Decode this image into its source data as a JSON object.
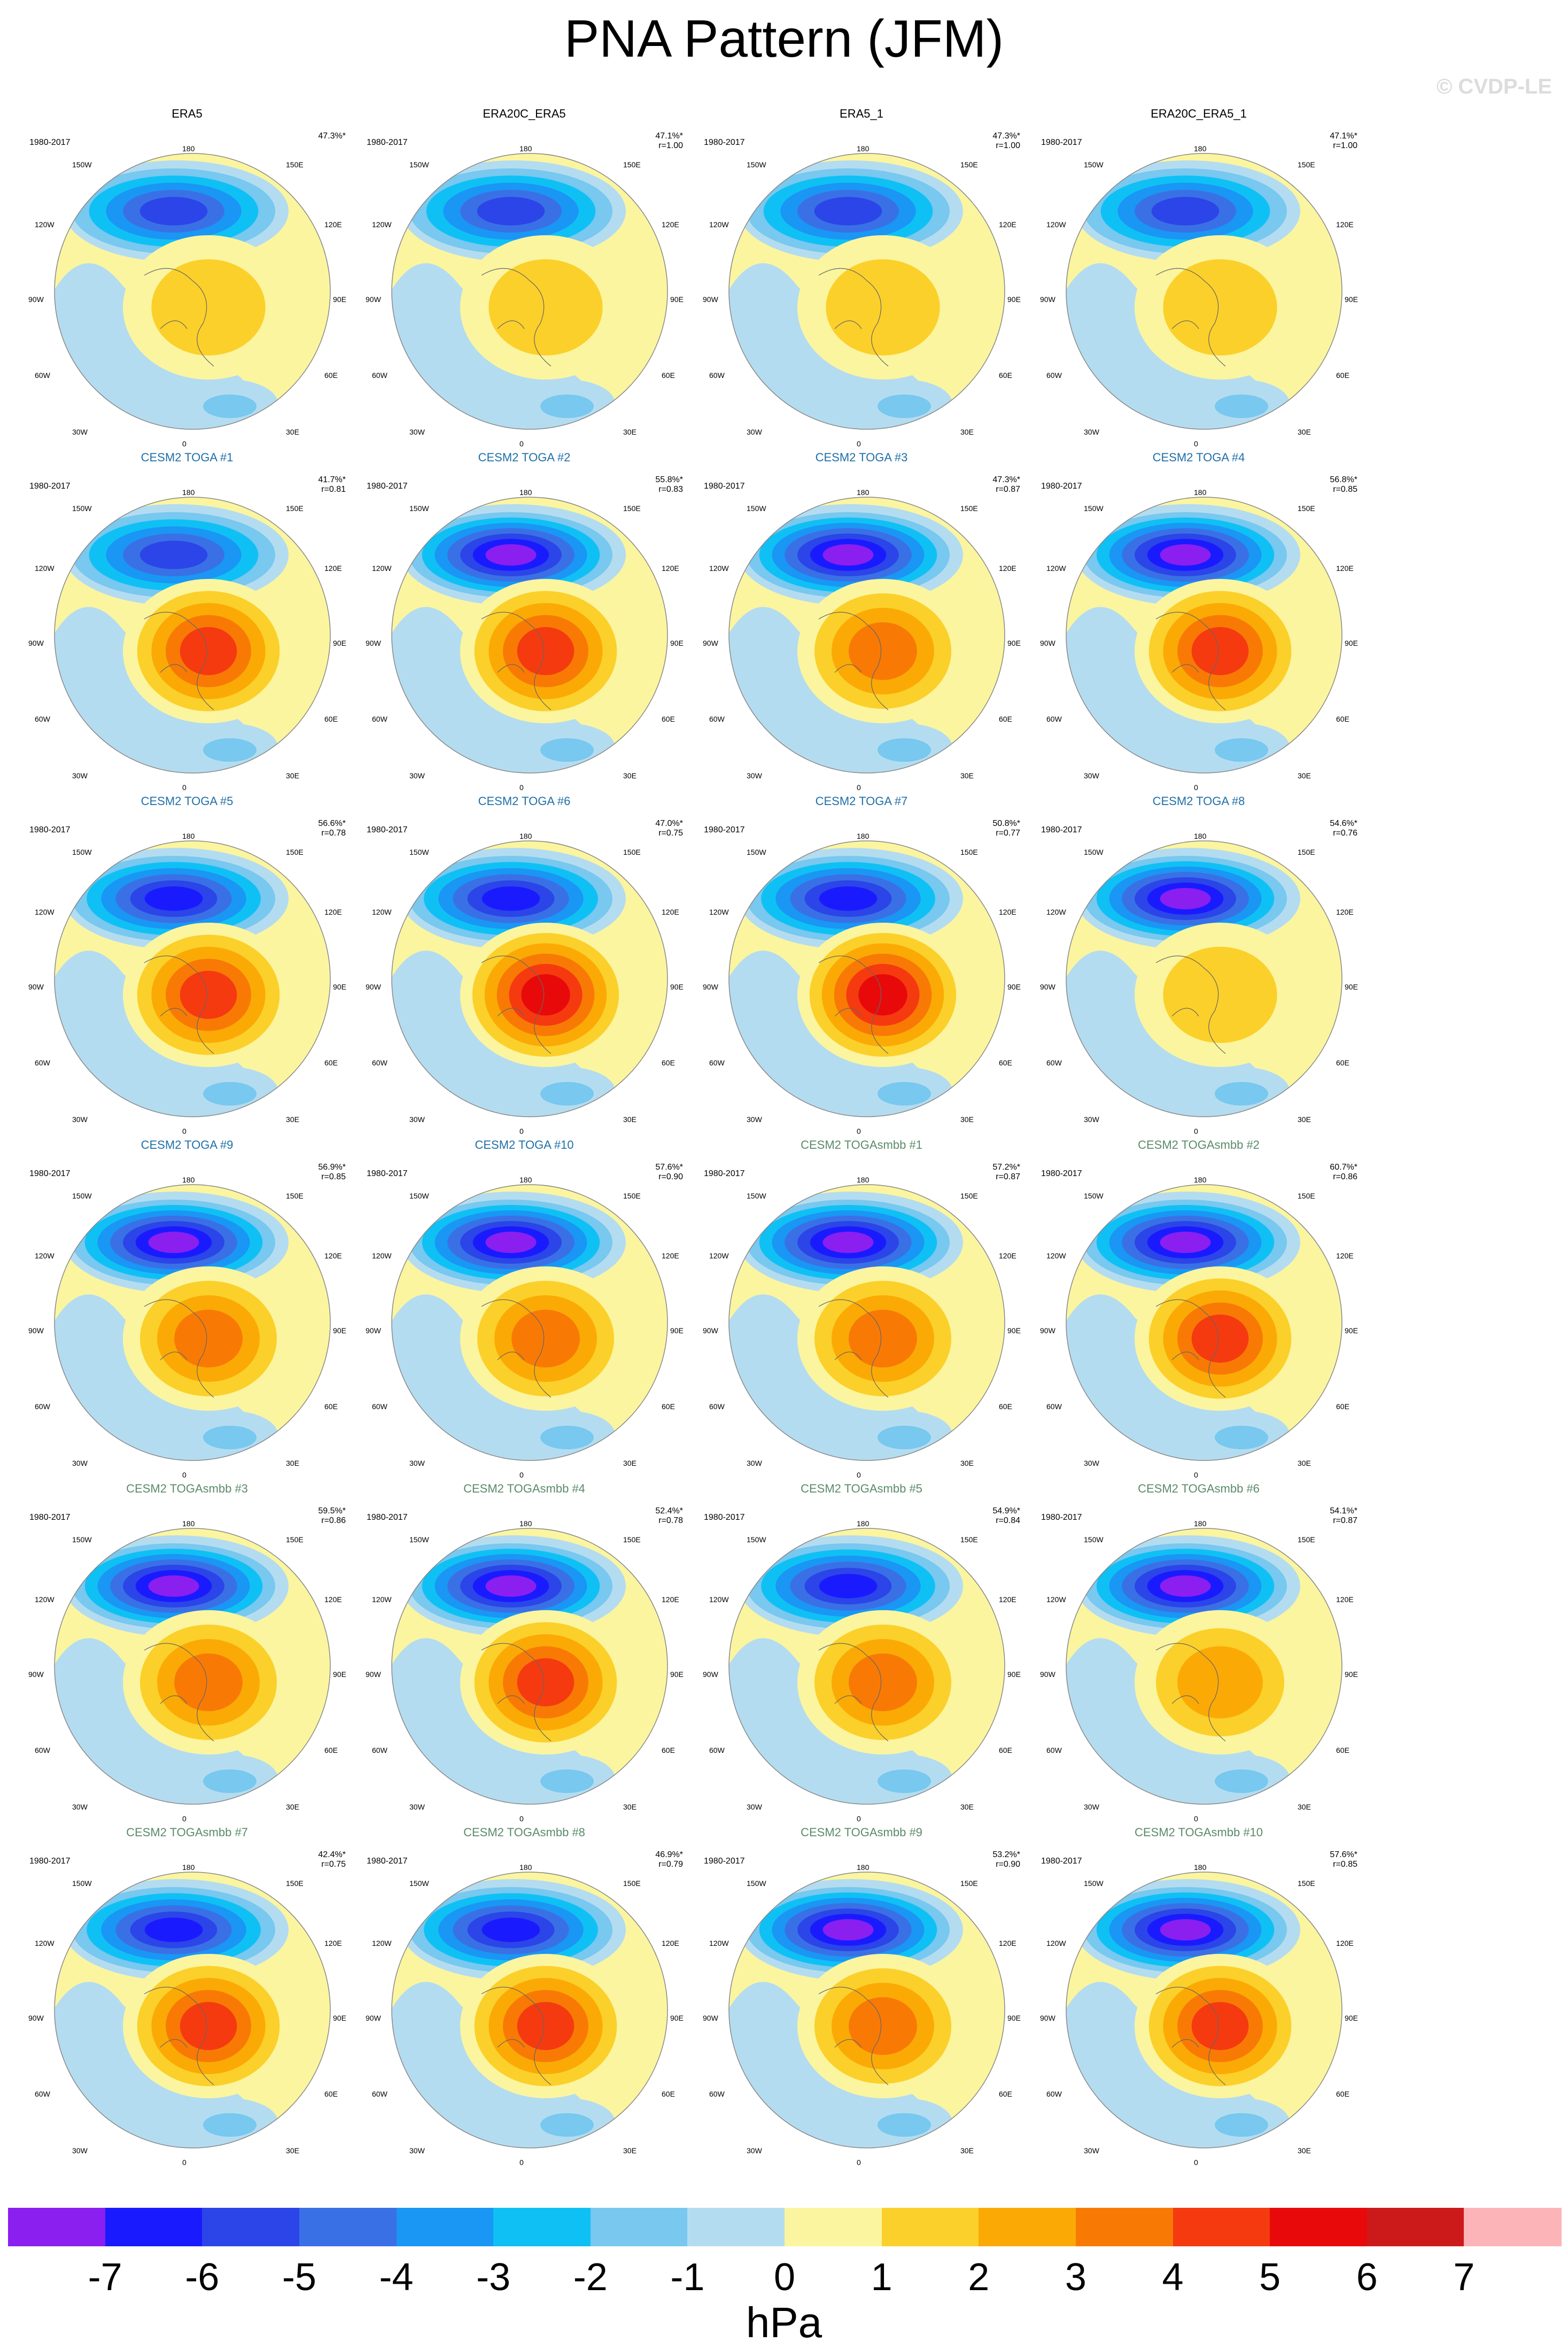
{
  "title": "PNA Pattern (JFM)",
  "watermark": "© CVDP-LE",
  "units": "hPa",
  "colorbar": {
    "labels": [
      "-7",
      "-6",
      "-5",
      "-4",
      "-3",
      "-2",
      "-1",
      "0",
      "1",
      "2",
      "3",
      "4",
      "5",
      "6",
      "7"
    ],
    "colors": [
      "#8a1ff0",
      "#1a1aff",
      "#2b45e8",
      "#3a70e6",
      "#1a96f5",
      "#0fc0f5",
      "#78c8ef",
      "#b4dcf0",
      "#fbf5a0",
      "#fcd02a",
      "#fbaa05",
      "#f87a05",
      "#f53a10",
      "#e80a0a",
      "#cc1a1a",
      "#fdb4b8"
    ]
  },
  "map_labels": {
    "top": "180",
    "bottom": "0",
    "left_top": "150W",
    "left_upper": "120W",
    "left_mid": "90W",
    "left_lower": "60W",
    "left_bottom": "30W",
    "right_top": "150E",
    "right_upper": "120E",
    "right_mid": "90E",
    "right_lower": "60E",
    "right_bottom": "30E"
  },
  "chart_data": {
    "type": "heatmap",
    "title": "PNA Pattern (JFM)",
    "units": "hPa",
    "levels": [
      -7,
      -6,
      -5,
      -4,
      -3,
      -2,
      -1,
      0,
      1,
      2,
      3,
      4,
      5,
      6,
      7
    ],
    "panels": [
      {
        "name": "ERA5",
        "period": "1980-2017",
        "pct": "47.3%*",
        "r": "",
        "group": "obs",
        "neg": 5,
        "pos": 2
      },
      {
        "name": "ERA20C_ERA5",
        "period": "1980-2017",
        "pct": "47.1%*",
        "r": "r=1.00",
        "group": "obs",
        "neg": 5,
        "pos": 2
      },
      {
        "name": "ERA5_1",
        "period": "1980-2017",
        "pct": "47.3%*",
        "r": "r=1.00",
        "group": "obs",
        "neg": 5,
        "pos": 2
      },
      {
        "name": "ERA20C_ERA5_1",
        "period": "1980-2017",
        "pct": "47.1%*",
        "r": "r=1.00",
        "group": "obs",
        "neg": 5,
        "pos": 2
      },
      {
        "name": "CESM2 TOGA #1",
        "period": "1980-2017",
        "pct": "41.7%*",
        "r": "r=0.81",
        "group": "toga",
        "neg": 5,
        "pos": 5
      },
      {
        "name": "CESM2 TOGA #2",
        "period": "1980-2017",
        "pct": "55.8%*",
        "r": "r=0.83",
        "group": "toga",
        "neg": 7,
        "pos": 5
      },
      {
        "name": "CESM2 TOGA #3",
        "period": "1980-2017",
        "pct": "47.3%*",
        "r": "r=0.87",
        "group": "toga",
        "neg": 7,
        "pos": 4
      },
      {
        "name": "CESM2 TOGA #4",
        "period": "1980-2017",
        "pct": "56.8%*",
        "r": "r=0.85",
        "group": "toga",
        "neg": 7,
        "pos": 5
      },
      {
        "name": "CESM2 TOGA #5",
        "period": "1980-2017",
        "pct": "56.6%*",
        "r": "r=0.78",
        "group": "toga",
        "neg": 6,
        "pos": 5
      },
      {
        "name": "CESM2 TOGA #6",
        "period": "1980-2017",
        "pct": "47.0%*",
        "r": "r=0.75",
        "group": "toga",
        "neg": 6,
        "pos": 6
      },
      {
        "name": "CESM2 TOGA #7",
        "period": "1980-2017",
        "pct": "50.8%*",
        "r": "r=0.77",
        "group": "toga",
        "neg": 6,
        "pos": 6
      },
      {
        "name": "CESM2 TOGA #8",
        "period": "1980-2017",
        "pct": "54.6%*",
        "r": "r=0.76",
        "group": "toga",
        "neg": 7,
        "pos": 2
      },
      {
        "name": "CESM2 TOGA #9",
        "period": "1980-2017",
        "pct": "56.9%*",
        "r": "r=0.85",
        "group": "toga",
        "neg": 7,
        "pos": 4
      },
      {
        "name": "CESM2 TOGA #10",
        "period": "1980-2017",
        "pct": "57.6%*",
        "r": "r=0.90",
        "group": "toga",
        "neg": 7,
        "pos": 4
      },
      {
        "name": "CESM2 TOGAsmbb #1",
        "period": "1980-2017",
        "pct": "57.2%*",
        "r": "r=0.87",
        "group": "smbb",
        "neg": 7,
        "pos": 4
      },
      {
        "name": "CESM2 TOGAsmbb #2",
        "period": "1980-2017",
        "pct": "60.7%*",
        "r": "r=0.86",
        "group": "smbb",
        "neg": 7,
        "pos": 5
      },
      {
        "name": "CESM2 TOGAsmbb #3",
        "period": "1980-2017",
        "pct": "59.5%*",
        "r": "r=0.86",
        "group": "smbb",
        "neg": 7,
        "pos": 4
      },
      {
        "name": "CESM2 TOGAsmbb #4",
        "period": "1980-2017",
        "pct": "52.4%*",
        "r": "r=0.78",
        "group": "smbb",
        "neg": 7,
        "pos": 5
      },
      {
        "name": "CESM2 TOGAsmbb #5",
        "period": "1980-2017",
        "pct": "54.9%*",
        "r": "r=0.84",
        "group": "smbb",
        "neg": 6,
        "pos": 4
      },
      {
        "name": "CESM2 TOGAsmbb #6",
        "period": "1980-2017",
        "pct": "54.1%*",
        "r": "r=0.87",
        "group": "smbb",
        "neg": 7,
        "pos": 3
      },
      {
        "name": "CESM2 TOGAsmbb #7",
        "period": "1980-2017",
        "pct": "42.4%*",
        "r": "r=0.75",
        "group": "smbb",
        "neg": 6,
        "pos": 5
      },
      {
        "name": "CESM2 TOGAsmbb #8",
        "period": "1980-2017",
        "pct": "46.9%*",
        "r": "r=0.79",
        "group": "smbb",
        "neg": 6,
        "pos": 5
      },
      {
        "name": "CESM2 TOGAsmbb #9",
        "period": "1980-2017",
        "pct": "53.2%*",
        "r": "r=0.90",
        "group": "smbb",
        "neg": 7,
        "pos": 4
      },
      {
        "name": "CESM2 TOGAsmbb #10",
        "period": "1980-2017",
        "pct": "57.6%*",
        "r": "r=0.85",
        "group": "smbb",
        "neg": 7,
        "pos": 5
      }
    ]
  }
}
